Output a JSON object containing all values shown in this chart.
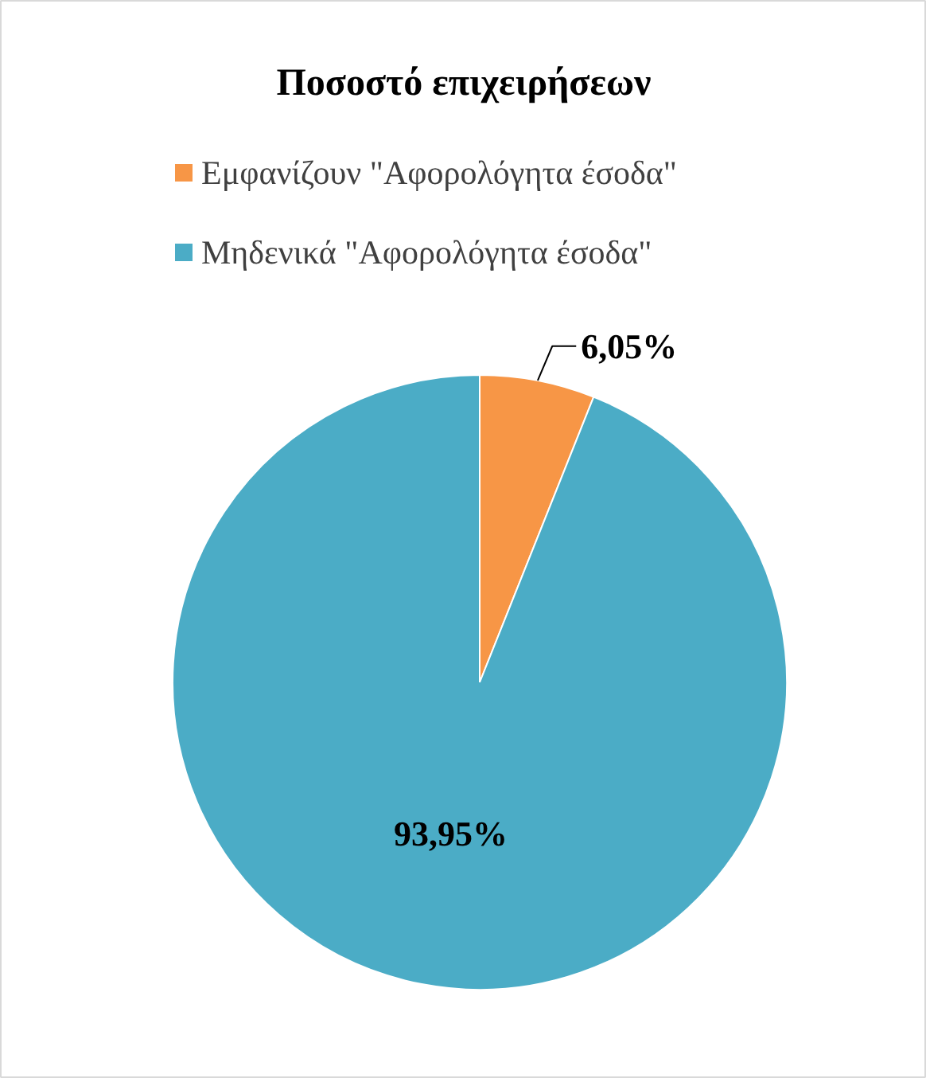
{
  "chart_data": {
    "type": "pie",
    "title": "Ποσοστό επιχειρήσεων",
    "categories": [
      "Εμφανίζουν \"Αφορολόγητα έσοδα\"",
      "Μηδενικά \"Αφορολόγητα έσοδα\""
    ],
    "values": [
      6.05,
      93.95
    ],
    "colors": [
      "#f79646",
      "#4bacc6"
    ],
    "value_labels": [
      "6,05%",
      "93,95%"
    ],
    "legend": "top"
  }
}
